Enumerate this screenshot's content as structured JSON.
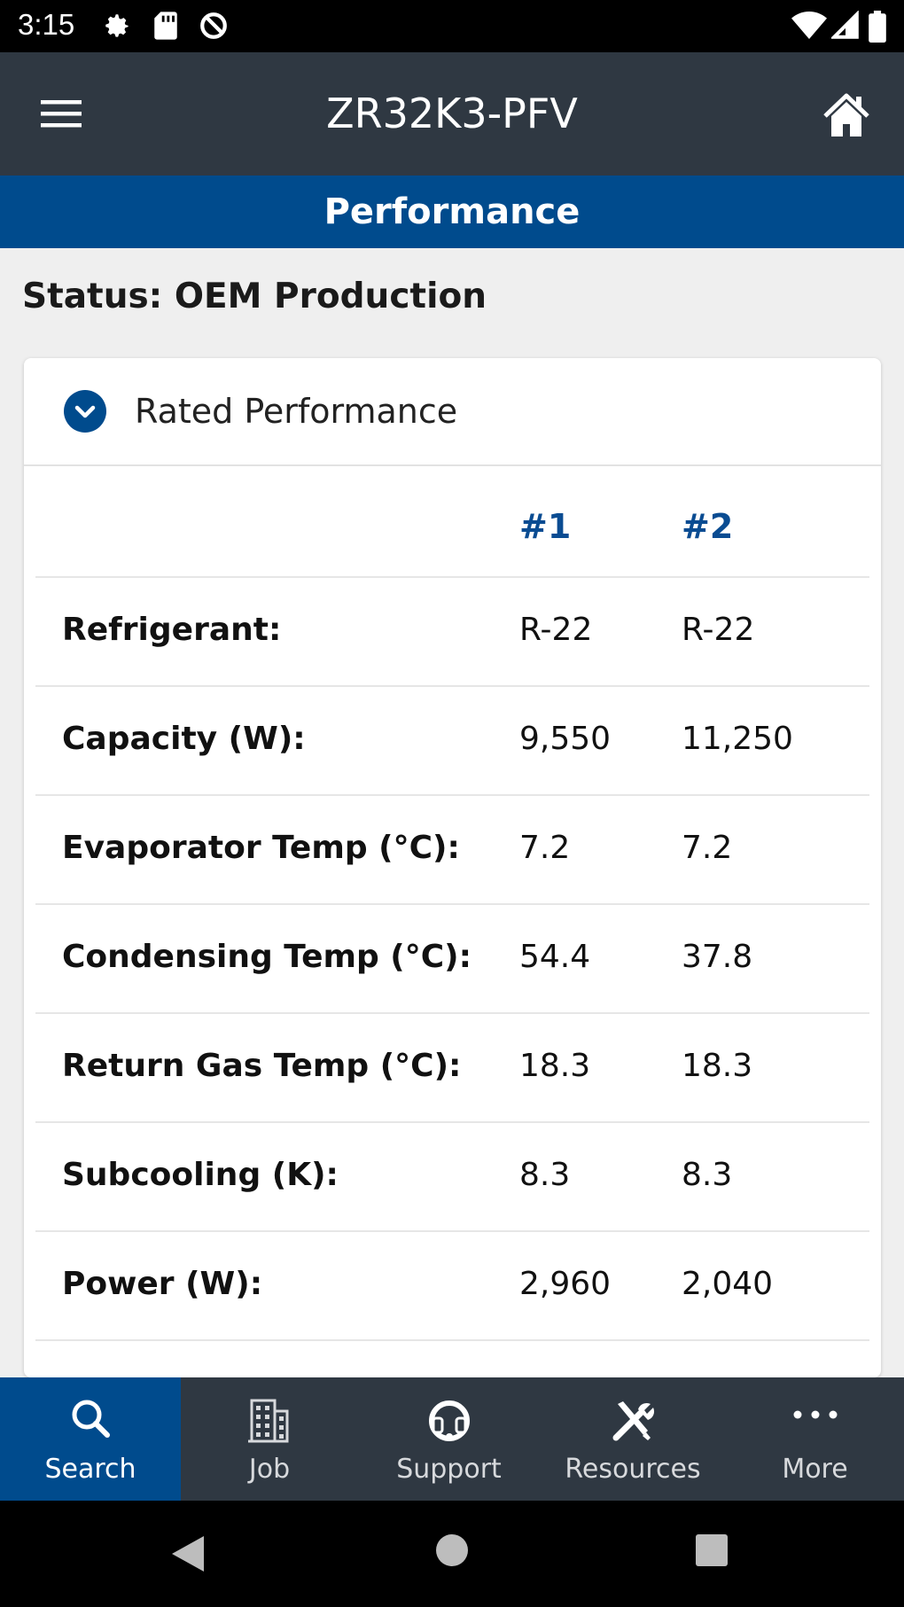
{
  "status_bar": {
    "time": "3:15",
    "icons": [
      "gear-icon",
      "sd-card-icon",
      "data-saver-icon",
      "wifi-icon",
      "signal-icon",
      "battery-icon"
    ]
  },
  "app_bar": {
    "title": "ZR32K3-PFV",
    "menu_icon": "hamburger-menu-icon",
    "home_icon": "home-icon"
  },
  "section": {
    "title": "Performance"
  },
  "status_line": "Status: OEM Production",
  "card": {
    "title": "Rated Performance",
    "toggle_icon": "chevron-down-icon",
    "columns": [
      "#1",
      "#2"
    ],
    "rows": [
      {
        "label": "Refrigerant:",
        "v1": "R-22",
        "v2": "R-22"
      },
      {
        "label": "Capacity (W):",
        "v1": "9,550",
        "v2": "11,250"
      },
      {
        "label": "Evaporator Temp (°C):",
        "v1": "7.2",
        "v2": "7.2"
      },
      {
        "label": "Condensing Temp (°C):",
        "v1": "54.4",
        "v2": "37.8"
      },
      {
        "label": "Return Gas Temp (°C):",
        "v1": "18.3",
        "v2": "18.3"
      },
      {
        "label": "Subcooling (K):",
        "v1": "8.3",
        "v2": "8.3"
      },
      {
        "label": "Power (W):",
        "v1": "2,960",
        "v2": "2,040"
      }
    ]
  },
  "bottom_nav": {
    "items": [
      {
        "label": "Search",
        "icon": "search-icon",
        "active": true
      },
      {
        "label": "Job",
        "icon": "building-icon",
        "active": false
      },
      {
        "label": "Support",
        "icon": "headset-icon",
        "active": false
      },
      {
        "label": "Resources",
        "icon": "tools-icon",
        "active": false
      },
      {
        "label": "More",
        "icon": "more-icon",
        "active": false
      }
    ]
  },
  "colors": {
    "app_bar": "#2f3842",
    "accent_blue": "#004b8d",
    "column_header": "#0a4c92",
    "background": "#efefef"
  }
}
